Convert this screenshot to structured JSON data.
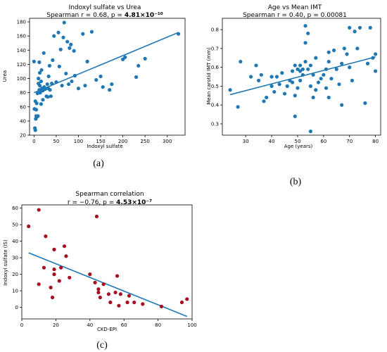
{
  "colors": {
    "blue": "#1f77b4",
    "red": "#a50f20",
    "line": "#1f77b4"
  },
  "chart_data": [
    {
      "type": "scatter",
      "panel_label": "(a)",
      "title": "Indoxyl sulfate vs Urea",
      "subtitle_prefix": "Spearman r = 0.68, p = ",
      "subtitle_p": "4.81×10⁻¹⁰",
      "xlabel": "Indoxyl sulfate",
      "ylabel": "Urea",
      "xlim": [
        -10,
        340
      ],
      "ylim": [
        20,
        185
      ],
      "xticks": [
        0,
        50,
        100,
        150,
        200,
        250,
        300
      ],
      "yticks": [
        20,
        40,
        60,
        80,
        100,
        120,
        140,
        160,
        180
      ],
      "point_color": "blue",
      "points": [
        [
          0,
          124
        ],
        [
          1,
          57
        ],
        [
          2,
          30
        ],
        [
          3,
          68
        ],
        [
          3,
          27
        ],
        [
          4,
          43
        ],
        [
          5,
          56
        ],
        [
          5,
          47
        ],
        [
          6,
          65
        ],
        [
          7,
          46
        ],
        [
          8,
          79
        ],
        [
          9,
          47
        ],
        [
          10,
          93
        ],
        [
          10,
          100
        ],
        [
          12,
          123
        ],
        [
          12,
          84
        ],
        [
          13,
          90
        ],
        [
          13,
          108
        ],
        [
          14,
          80
        ],
        [
          15,
          82
        ],
        [
          16,
          64
        ],
        [
          16,
          96
        ],
        [
          17,
          112
        ],
        [
          18,
          86
        ],
        [
          20,
          83
        ],
        [
          20,
          70
        ],
        [
          22,
          136
        ],
        [
          23,
          88
        ],
        [
          25,
          85
        ],
        [
          28,
          75
        ],
        [
          30,
          92
        ],
        [
          31,
          74
        ],
        [
          32,
          86
        ],
        [
          33,
          103
        ],
        [
          35,
          118
        ],
        [
          36,
          84
        ],
        [
          38,
          75
        ],
        [
          40,
          93
        ],
        [
          42,
          126
        ],
        [
          45,
          160
        ],
        [
          50,
          95
        ],
        [
          55,
          165
        ],
        [
          57,
          117
        ],
        [
          60,
          141
        ],
        [
          63,
          90
        ],
        [
          66,
          158
        ],
        [
          68,
          179
        ],
        [
          72,
          107
        ],
        [
          75,
          152
        ],
        [
          78,
          92
        ],
        [
          80,
          143
        ],
        [
          83,
          148
        ],
        [
          85,
          96
        ],
        [
          90,
          139
        ],
        [
          92,
          104
        ],
        [
          100,
          86
        ],
        [
          110,
          163
        ],
        [
          115,
          90
        ],
        [
          120,
          124
        ],
        [
          130,
          166
        ],
        [
          140,
          98
        ],
        [
          150,
          103
        ],
        [
          155,
          88
        ],
        [
          170,
          84
        ],
        [
          175,
          92
        ],
        [
          200,
          127
        ],
        [
          205,
          130
        ],
        [
          230,
          102
        ],
        [
          235,
          118
        ],
        [
          250,
          128
        ],
        [
          325,
          163
        ]
      ],
      "fit": [
        [
          0,
          80
        ],
        [
          325,
          165
        ]
      ]
    },
    {
      "type": "scatter",
      "panel_label": "(b)",
      "title": "Age vs Mean IMT",
      "subtitle": "Spearman r = 0.40, p = 0.00081",
      "xlabel": "Age (years)",
      "ylabel": "Mean carotid IMT (mm)",
      "xlim": [
        21,
        82
      ],
      "ylim": [
        0.24,
        0.86
      ],
      "xticks": [
        30,
        40,
        50,
        60,
        70,
        80
      ],
      "yticks": [
        0.3,
        0.4,
        0.5,
        0.6,
        0.7,
        0.8
      ],
      "point_color": "blue",
      "points": [
        [
          24,
          0.48
        ],
        [
          27,
          0.39
        ],
        [
          28,
          0.63
        ],
        [
          32,
          0.55
        ],
        [
          34,
          0.61
        ],
        [
          35,
          0.53
        ],
        [
          36,
          0.56
        ],
        [
          37,
          0.42
        ],
        [
          38,
          0.44
        ],
        [
          40,
          0.5
        ],
        [
          40,
          0.55
        ],
        [
          41,
          0.47
        ],
        [
          42,
          0.55
        ],
        [
          43,
          0.51
        ],
        [
          44,
          0.57
        ],
        [
          45,
          0.46
        ],
        [
          46,
          0.5
        ],
        [
          47,
          0.53
        ],
        [
          48,
          0.58
        ],
        [
          48,
          0.52
        ],
        [
          49,
          0.34
        ],
        [
          49,
          0.61
        ],
        [
          49,
          0.45
        ],
        [
          50,
          0.49
        ],
        [
          50,
          0.59
        ],
        [
          51,
          0.61
        ],
        [
          51,
          0.58
        ],
        [
          51,
          0.53
        ],
        [
          52,
          0.56
        ],
        [
          52,
          0.59
        ],
        [
          53,
          0.63
        ],
        [
          53,
          0.82
        ],
        [
          53,
          0.73
        ],
        [
          54,
          0.78
        ],
        [
          54,
          0.59
        ],
        [
          55,
          0.61
        ],
        [
          55,
          0.5
        ],
        [
          55,
          0.26
        ],
        [
          56,
          0.56
        ],
        [
          56,
          0.44
        ],
        [
          57,
          0.48
        ],
        [
          57,
          0.65
        ],
        [
          58,
          0.52
        ],
        [
          59,
          0.54
        ],
        [
          60,
          0.56
        ],
        [
          61,
          0.49
        ],
        [
          61,
          0.59
        ],
        [
          62,
          0.63
        ],
        [
          62,
          0.44
        ],
        [
          62,
          0.68
        ],
        [
          63,
          0.54
        ],
        [
          64,
          0.69
        ],
        [
          65,
          0.59
        ],
        [
          66,
          0.51
        ],
        [
          67,
          0.62
        ],
        [
          67,
          0.4
        ],
        [
          68,
          0.7
        ],
        [
          69,
          0.67
        ],
        [
          70,
          0.81
        ],
        [
          70,
          0.6
        ],
        [
          71,
          0.53
        ],
        [
          72,
          0.79
        ],
        [
          73,
          0.7
        ],
        [
          74,
          0.81
        ],
        [
          76,
          0.41
        ],
        [
          77,
          0.62
        ],
        [
          79,
          0.65
        ],
        [
          80,
          0.67
        ],
        [
          80,
          0.58
        ],
        [
          78,
          0.81
        ]
      ],
      "fit": [
        [
          24,
          0.455
        ],
        [
          80,
          0.655
        ]
      ]
    },
    {
      "type": "scatter",
      "panel_label": "(c)",
      "title": "Spearman correlation",
      "subtitle_prefix": "r = −0.76, p = ",
      "subtitle_p": "4.53×10⁻⁷",
      "xlabel": "CKD-EPI",
      "ylabel": "Indoxyl sulfate (IS)",
      "xlim": [
        0,
        100
      ],
      "ylim": [
        -7,
        62
      ],
      "xticks": [
        0,
        20,
        40,
        60,
        80,
        100
      ],
      "yticks": [
        0,
        10,
        20,
        30,
        40,
        50,
        60
      ],
      "point_color": "red",
      "points": [
        [
          4,
          49
        ],
        [
          10,
          59
        ],
        [
          10,
          14
        ],
        [
          13,
          24
        ],
        [
          14,
          43
        ],
        [
          17,
          12
        ],
        [
          18,
          6
        ],
        [
          19,
          23
        ],
        [
          19,
          20
        ],
        [
          19,
          35
        ],
        [
          22,
          16
        ],
        [
          23,
          24
        ],
        [
          25,
          37
        ],
        [
          26,
          31
        ],
        [
          28,
          18
        ],
        [
          40,
          20
        ],
        [
          43,
          15
        ],
        [
          44,
          55
        ],
        [
          45,
          11
        ],
        [
          45,
          9
        ],
        [
          46,
          6
        ],
        [
          48,
          14
        ],
        [
          51,
          8
        ],
        [
          52,
          3
        ],
        [
          55,
          9
        ],
        [
          56,
          19
        ],
        [
          57,
          1
        ],
        [
          58,
          8
        ],
        [
          62,
          3
        ],
        [
          63,
          7
        ],
        [
          66,
          3
        ],
        [
          71,
          2
        ],
        [
          82,
          0.5
        ],
        [
          94,
          3
        ],
        [
          97,
          5
        ]
      ],
      "fit": [
        [
          4,
          33
        ],
        [
          97,
          -5.5
        ]
      ]
    }
  ]
}
